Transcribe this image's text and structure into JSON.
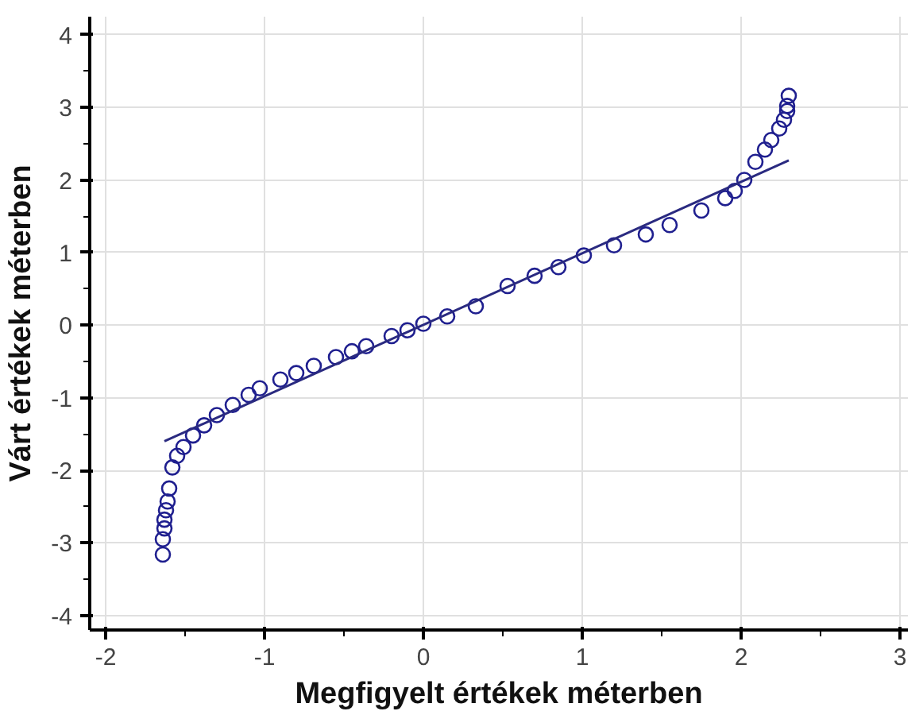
{
  "chart_data": {
    "type": "scatter",
    "xlabel": "Megfigyelt értékek méterben",
    "ylabel": "Várt értékek méterben",
    "xlim": [
      -2.1,
      3.05
    ],
    "ylim": [
      -4.2,
      4.25
    ],
    "xticks": [
      -2,
      {
        "value": -1.5,
        "label": null
      },
      -1,
      {
        "value": -0.5,
        "label": null
      },
      0,
      {
        "value": 0.5,
        "label": null
      },
      1,
      {
        "value": 1.5,
        "label": null
      },
      2,
      {
        "value": 2.5,
        "label": null
      },
      3
    ],
    "yticks": [
      -4,
      {
        "value": -3.5,
        "label": null
      },
      -3,
      {
        "value": -2.5,
        "label": null
      },
      -2,
      {
        "value": -1.5,
        "label": null
      },
      -1,
      {
        "value": -0.5,
        "label": null
      },
      0,
      {
        "value": 0.5,
        "label": null
      },
      1,
      {
        "value": 1.5,
        "label": null
      },
      2,
      {
        "value": 2.5,
        "label": null
      },
      3,
      {
        "value": 3.5,
        "label": null
      },
      4
    ],
    "grid": true,
    "series": [
      {
        "marker": "circle",
        "color": "#1f1f8f",
        "x": [
          -1.64,
          -1.64,
          -1.63,
          -1.63,
          -1.62,
          -1.61,
          -1.6,
          -1.58,
          -1.55,
          -1.51,
          -1.45,
          -1.38,
          -1.3,
          -1.2,
          -1.1,
          -1.03,
          -0.9,
          -0.8,
          -0.69,
          -0.55,
          -0.45,
          -0.36,
          -0.2,
          -0.1,
          0.0,
          0.15,
          0.33,
          0.53,
          0.7,
          0.85,
          1.01,
          1.2,
          1.4,
          1.55,
          1.75,
          1.9,
          1.96,
          2.02,
          2.09,
          2.15,
          2.19,
          2.24,
          2.27,
          2.29,
          2.29,
          2.3
        ],
        "values": [
          -3.16,
          -2.95,
          -2.8,
          -2.68,
          -2.55,
          -2.43,
          -2.25,
          -1.96,
          -1.8,
          -1.68,
          -1.52,
          -1.38,
          -1.24,
          -1.1,
          -0.96,
          -0.87,
          -0.75,
          -0.66,
          -0.56,
          -0.44,
          -0.36,
          -0.29,
          -0.15,
          -0.07,
          0.02,
          0.12,
          0.26,
          0.54,
          0.68,
          0.8,
          0.96,
          1.1,
          1.25,
          1.38,
          1.58,
          1.75,
          1.85,
          2.0,
          2.25,
          2.42,
          2.55,
          2.71,
          2.83,
          2.95,
          3.02,
          3.16
        ]
      },
      {
        "type": "line",
        "marker": "none",
        "color": "#2a2a80",
        "x": [
          -1.63,
          2.3
        ],
        "values": [
          -1.6,
          2.27
        ]
      }
    ]
  }
}
